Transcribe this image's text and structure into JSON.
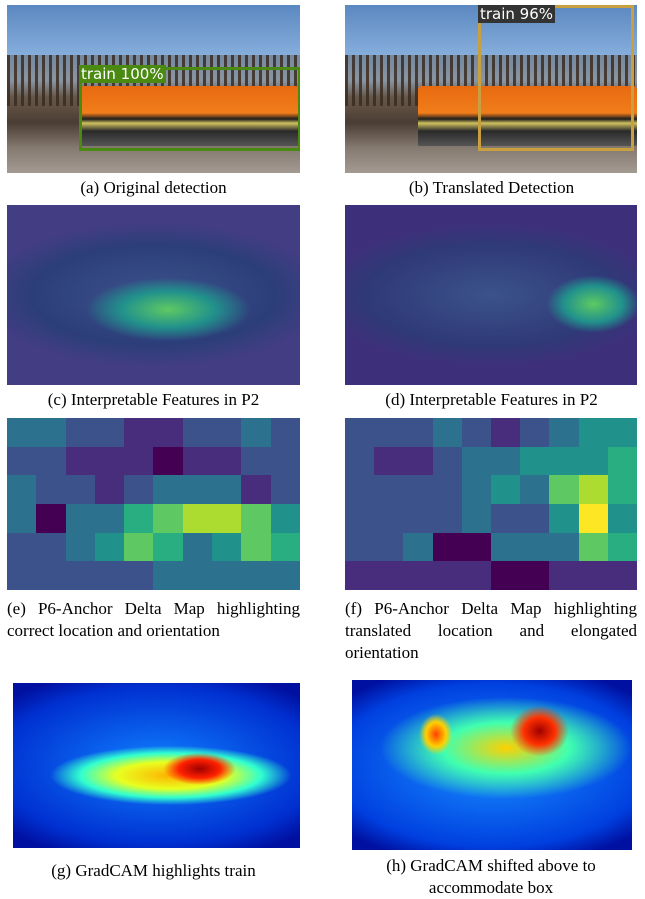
{
  "panels": [
    {
      "detection_label": "train 100%",
      "caption": "(a) Original detection"
    },
    {
      "detection_label": "train 96%",
      "caption": "(b) Translated Detection"
    },
    {
      "caption": "(c) Interpretable Features in P2"
    },
    {
      "caption": "(d) Interpretable Features in P2"
    },
    {
      "caption": "(e) P6-Anchor Delta Map highlighting correct location and orientation"
    },
    {
      "caption": "(f) P6-Anchor Delta Map highlighting translated location and elongated orientation"
    },
    {
      "caption": "(g) GradCAM highlights train"
    },
    {
      "caption": "(h) GradCAM shifted above to accommodate box"
    }
  ]
}
